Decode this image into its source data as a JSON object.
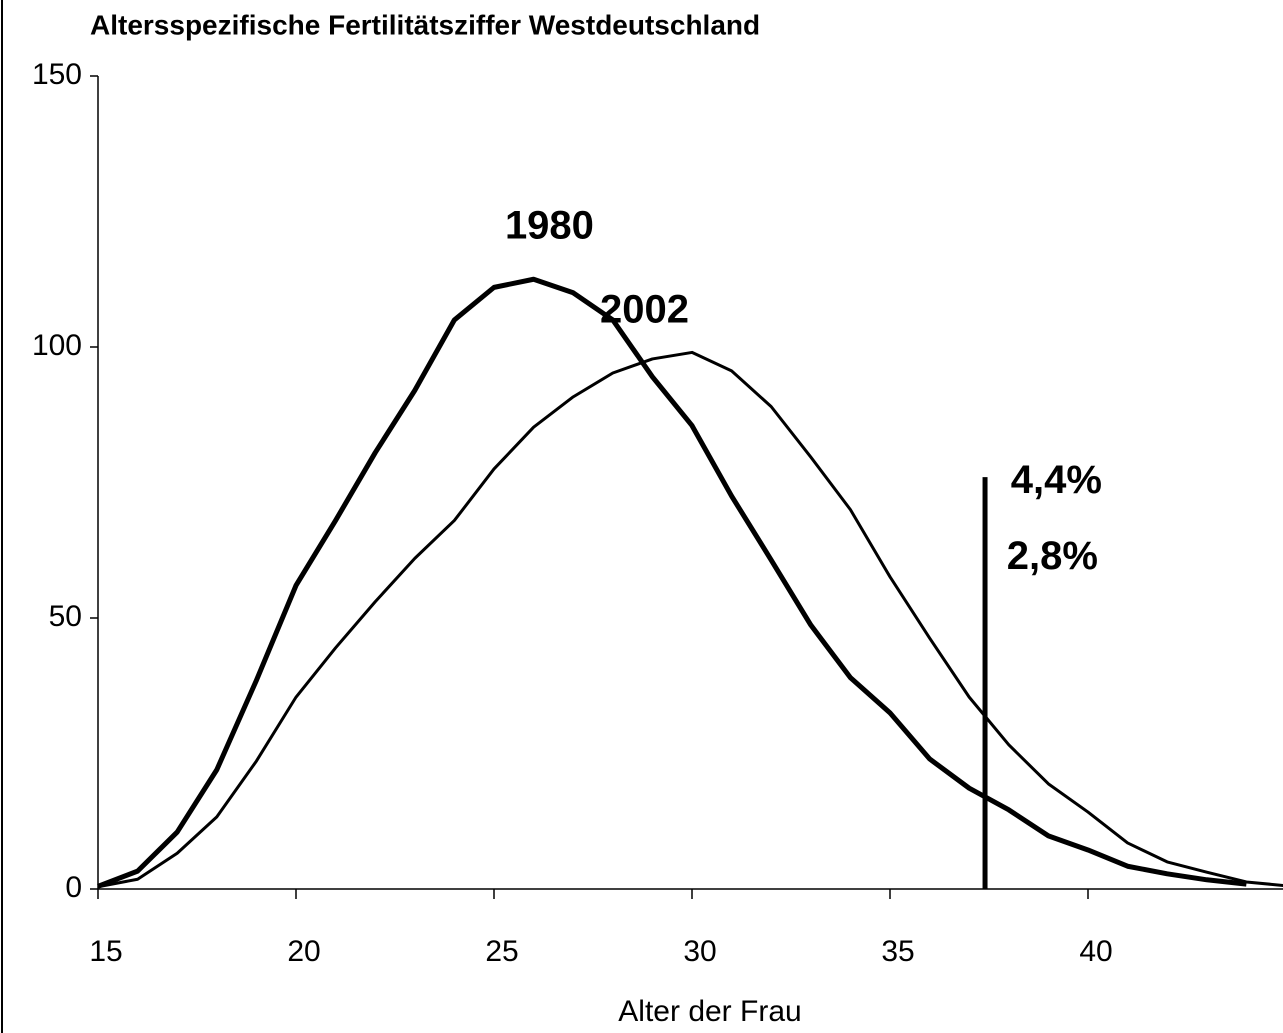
{
  "chart_data": {
    "type": "line",
    "title": "Altersspezifische Fertilitätsziffer Westdeutschland",
    "x_label": "Alter der Frau",
    "x": [
      15,
      16,
      17,
      18,
      19,
      20,
      21,
      22,
      23,
      24,
      25,
      26,
      27,
      28,
      29,
      30,
      31,
      32,
      33,
      34,
      35,
      36,
      37,
      38,
      39,
      40,
      41,
      42,
      43,
      44,
      45
    ],
    "series": [
      {
        "name": "1980",
        "color": "#000000",
        "values": [
          0.5,
          3.3,
          10.5,
          22,
          38.5,
          56,
          68,
          80.5,
          92,
          105,
          111,
          112.5,
          110,
          105,
          94.5,
          85.5,
          72.5,
          60.7,
          48.7,
          39,
          32.5,
          24,
          18.6,
          14.6,
          9.8,
          7.2,
          4.2,
          2.8,
          1.7,
          0.9,
          null
        ]
      },
      {
        "name": "2002",
        "color": "#000000",
        "values": [
          0.4,
          1.8,
          6.6,
          13.3,
          23.6,
          35.4,
          44.5,
          53,
          61,
          68,
          77.5,
          85.2,
          90.8,
          95.2,
          97.8,
          99,
          95.6,
          89,
          79.7,
          70,
          57.6,
          46.3,
          35.4,
          26.6,
          19.4,
          14.2,
          8.5,
          5,
          3.1,
          1.3,
          0.6
        ]
      }
    ],
    "reference_line": {
      "x": 37.4,
      "y": 76
    },
    "annotations": [
      "4,4%",
      "2,8%"
    ],
    "xlim": [
      15,
      45
    ],
    "xticks": [
      15,
      20,
      25,
      30,
      35,
      40
    ],
    "ylim": [
      0,
      150
    ],
    "yticks": [
      0,
      50,
      100,
      150
    ]
  }
}
